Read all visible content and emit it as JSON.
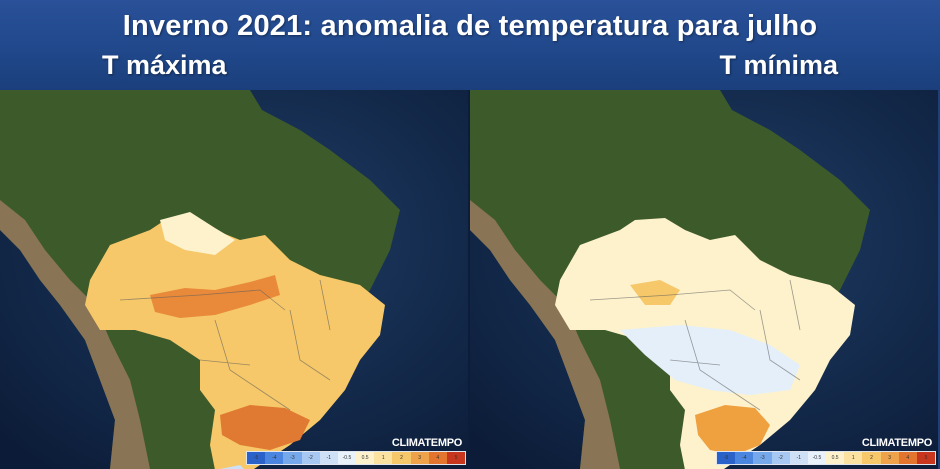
{
  "header": {
    "title": "Inverno 2021: anomalia de temperatura para julho",
    "left_label": "T máxima",
    "right_label": "T mínima"
  },
  "panels": [
    {
      "id": "tmax",
      "logo": "CLIMATEMPO",
      "dominant_color": "#f6c869",
      "hotspot_color": "#e88a3a"
    },
    {
      "id": "tmin",
      "logo": "CLIMATEMPO",
      "dominant_color": "#fdf2cc",
      "hotspot_color": "#f0a13f"
    }
  ],
  "scale": {
    "ticks": [
      "-5",
      "-4",
      "-3",
      "-2",
      "-1",
      "-0.5",
      "0.5",
      "1",
      "2",
      "3",
      "4",
      "5"
    ],
    "colors": [
      "#2a62c9",
      "#4a86e0",
      "#76a9ec",
      "#a6c8f2",
      "#cde0f6",
      "#e9f2fb",
      "#fdf2cc",
      "#fbe2a0",
      "#f6c869",
      "#eea34a",
      "#e3752f",
      "#c8361d"
    ]
  }
}
